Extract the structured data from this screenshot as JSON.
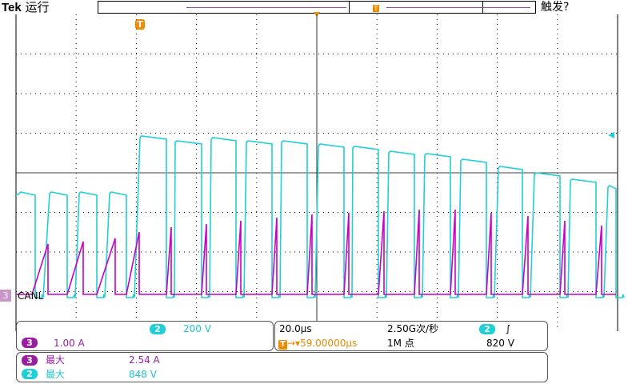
{
  "header": {
    "brand": "Tek",
    "run_state": "运行",
    "trigger_state": "触发?"
  },
  "trigger": {
    "marker_label": "T"
  },
  "channel_marker": {
    "number": "3",
    "label": "CANL"
  },
  "measure_panel": {
    "ch2": {
      "number": "2",
      "scale": "200 V"
    },
    "ch3": {
      "number": "3",
      "scale": "1.00 A"
    }
  },
  "timebase_panel": {
    "time_div": "20.0µs",
    "sample_rate": "2.50G次/秒",
    "trigger_channel": "2",
    "trigger_slope": "∫",
    "trigger_position_icon": "T",
    "trigger_position": "→▾59.00000µs",
    "record_length": "1M 点",
    "trigger_level": "820 V"
  },
  "stats_panel": {
    "rows": [
      {
        "channel": "3",
        "label": "最大",
        "value": "2.54 A",
        "color": "#9a1ea0"
      },
      {
        "channel": "2",
        "label": "最大",
        "value": "848 V",
        "color": "#1fd0d8"
      }
    ]
  },
  "colors": {
    "ch2": "#1fd0d8",
    "ch3": "#c800c8",
    "trigger": "#f08a00",
    "grid": "#000000"
  },
  "icons": {
    "trigger_marker": "trigger-t-icon",
    "ch3_ground": "ch3-ground-marker-icon",
    "level_arrow": "trigger-level-arrow-icon"
  }
}
